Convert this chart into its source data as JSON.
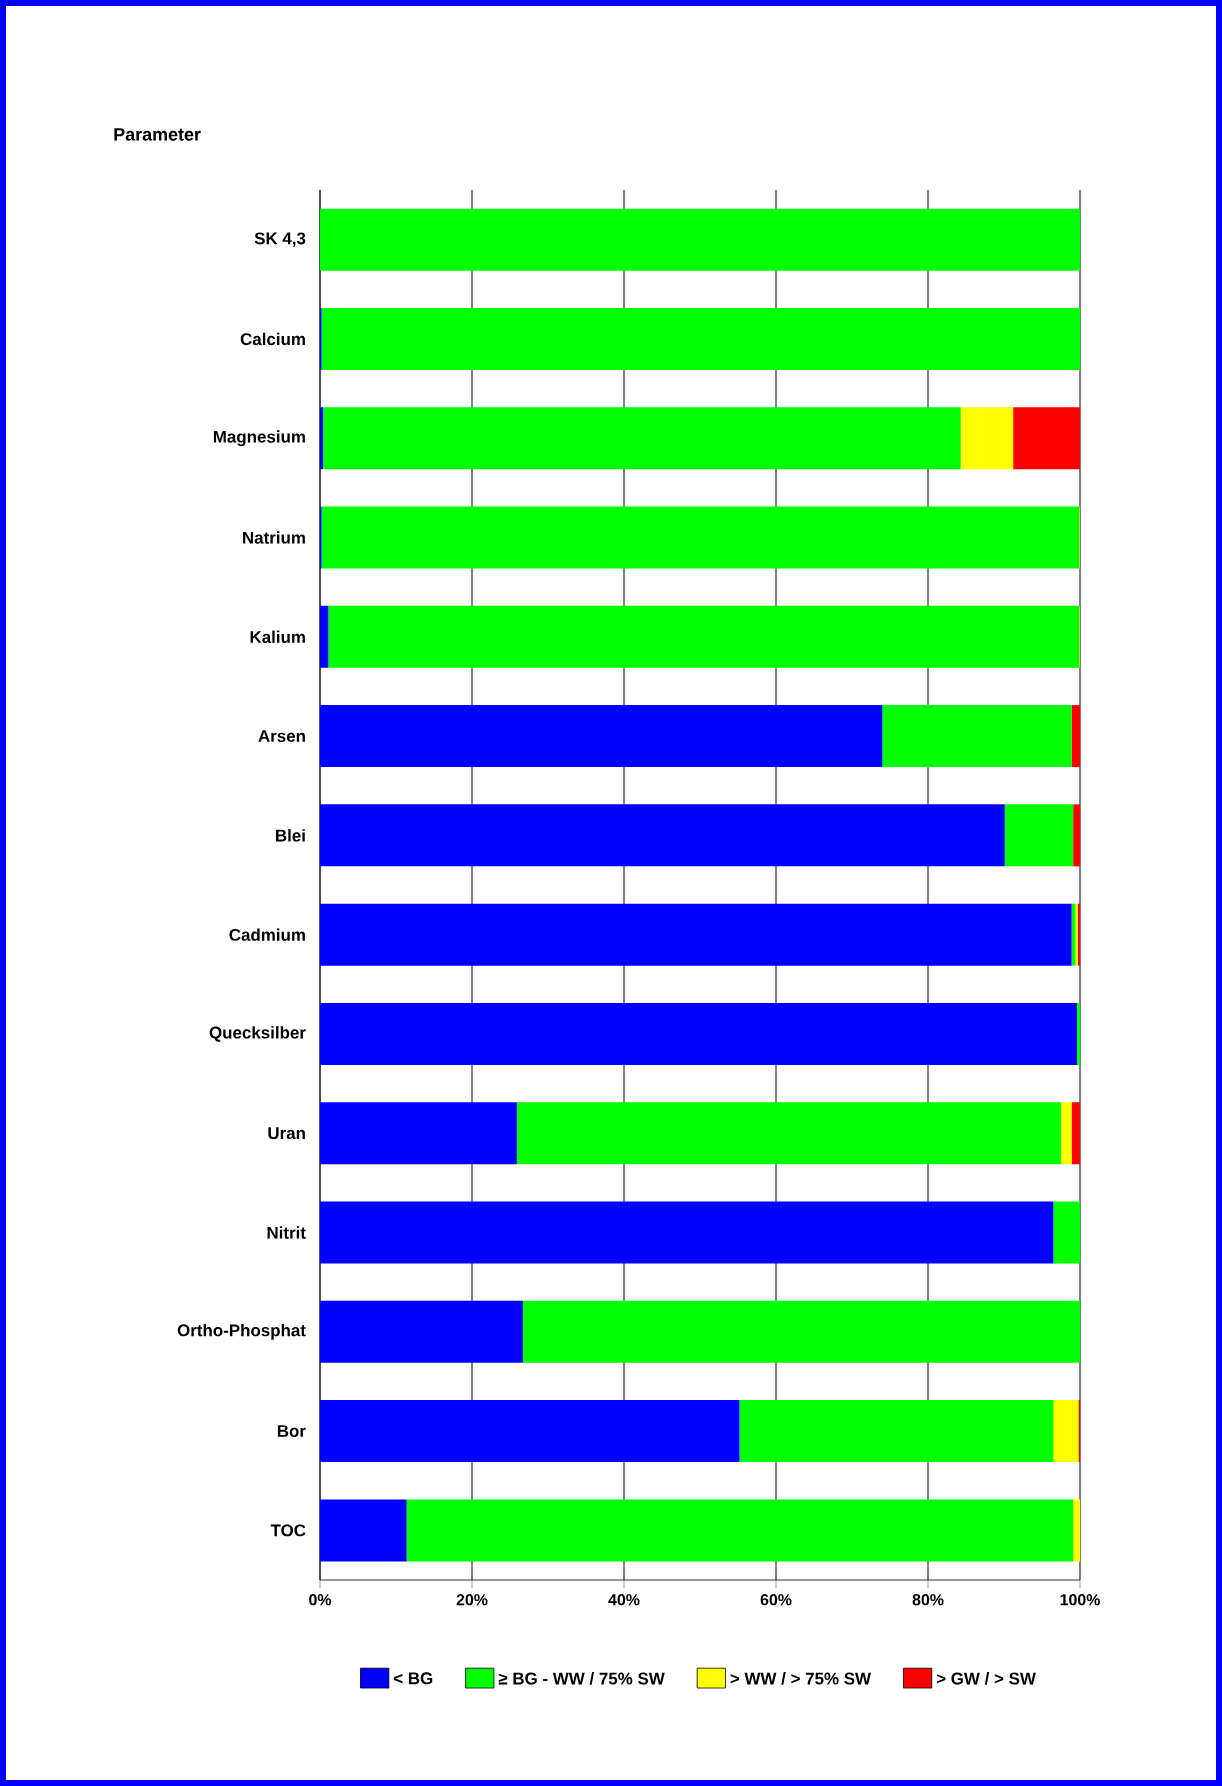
{
  "chart_data": {
    "type": "bar",
    "orientation": "horizontal",
    "stacked": true,
    "ylabel": "Parameter",
    "categories": [
      "SK 4,3",
      "Calcium",
      "Magnesium",
      "Natrium",
      "Kalium",
      "Arsen",
      "Blei",
      "Cadmium",
      "Quecksilber",
      "Uran",
      "Nitrit",
      "Ortho-Phosphat",
      "Bor",
      "TOC"
    ],
    "series": [
      {
        "name": "< BG",
        "color": "#0000ff",
        "values": [
          0,
          0.2,
          0.4,
          0.2,
          1.1,
          74.0,
          90.1,
          98.9,
          99.6,
          25.9,
          96.5,
          26.7,
          55.2,
          11.4
        ]
      },
      {
        "name": "≥ BG - WW / 75% SW",
        "color": "#00ff00",
        "values": [
          100,
          99.8,
          83.9,
          99.7,
          98.8,
          24.9,
          9.0,
          0.5,
          0.4,
          71.6,
          3.5,
          73.3,
          41.3,
          87.7
        ]
      },
      {
        "name": "> WW / > 75% SW",
        "color": "#ffff00",
        "values": [
          0,
          0,
          6.9,
          0.1,
          0.1,
          0,
          0,
          0.3,
          0,
          1.4,
          0,
          0,
          3.3,
          0.9
        ]
      },
      {
        "name": "> GW / > SW",
        "color": "#ff0000",
        "values": [
          0,
          0,
          8.8,
          0,
          0,
          1.1,
          0.9,
          0.3,
          0,
          1.1,
          0,
          0,
          0.2,
          0
        ]
      }
    ],
    "xlim": [
      0,
      100
    ],
    "xticks": [
      {
        "value": 0,
        "label": "0%"
      },
      {
        "value": 20,
        "label": "20%"
      },
      {
        "value": 40,
        "label": "40%"
      },
      {
        "value": 60,
        "label": "60%"
      },
      {
        "value": 80,
        "label": "80%"
      },
      {
        "value": 100,
        "label": "100%"
      }
    ],
    "grid": "x",
    "legend": "bottom"
  }
}
